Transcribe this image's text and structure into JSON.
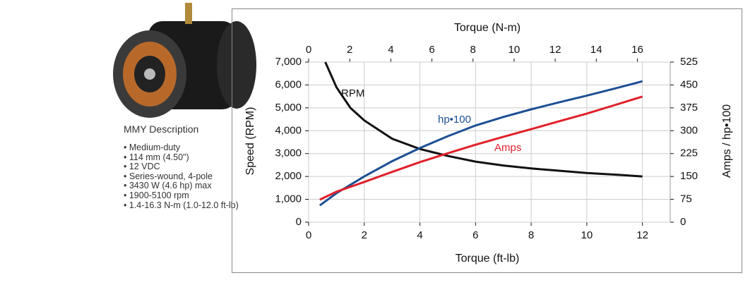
{
  "description": {
    "title": "MMY Description",
    "items": [
      "Medium-duty",
      "114 mm (4.50\")",
      "12 VDC",
      "Series-wound, 4-pole",
      "3430 W (4.6 hp) max",
      "1900-5100 rpm",
      "1.4-16.3 N-m (1.0-12.0 ft-lb)"
    ]
  },
  "chart_data": {
    "type": "line",
    "x_label": "Torque (ft-lb)",
    "x2_label": "Torque (N-m)",
    "y_label": "Speed (RPM)",
    "y2_label": "Amps / hp•100",
    "xlim": [
      0,
      13
    ],
    "xticks": [
      0,
      2,
      4,
      6,
      8,
      10,
      12
    ],
    "x2lim": [
      0,
      17.6
    ],
    "x2ticks": [
      0,
      2,
      4,
      6,
      8,
      10,
      12,
      14,
      16
    ],
    "ylim": [
      0,
      7000
    ],
    "yticks": [
      0,
      {
        "value": 1000,
        "label": "1,000"
      },
      {
        "value": 2000,
        "label": "2,000"
      },
      {
        "value": 3000,
        "label": "3,000"
      },
      {
        "value": 4000,
        "label": "4,000"
      },
      {
        "value": 5000,
        "label": "5,000"
      },
      {
        "value": 6000,
        "label": "6,000"
      },
      {
        "value": 7000,
        "label": "7,000"
      }
    ],
    "y2lim": [
      0,
      525
    ],
    "y2ticks": [
      0,
      75,
      150,
      225,
      300,
      375,
      450,
      525
    ],
    "grid": true,
    "series": [
      {
        "name": "RPM",
        "color": "#111111",
        "x": [
          0.6,
          1,
          1.5,
          2,
          3,
          4,
          5,
          6,
          7,
          8,
          9,
          10,
          11,
          12
        ],
        "values": [
          7000,
          5900,
          5000,
          4450,
          3650,
          3200,
          2900,
          2650,
          2480,
          2350,
          2250,
          2150,
          2080,
          2000
        ]
      },
      {
        "name": "hp•100",
        "color": "#1d4f94",
        "axis": "y2",
        "x": [
          0.4,
          1,
          2,
          3,
          4,
          5,
          6,
          7,
          8,
          9,
          10,
          11,
          12
        ],
        "values": [
          55,
          95,
          150,
          200,
          243,
          282,
          317,
          345,
          370,
          393,
          415,
          438,
          462
        ]
      },
      {
        "name": "Amps",
        "color": "#e0202a",
        "axis": "y2",
        "x": [
          0.4,
          1,
          2,
          3,
          4,
          5,
          6,
          7,
          8,
          9,
          10,
          11,
          12
        ],
        "values": [
          74,
          100,
          132,
          165,
          197,
          226,
          254,
          280,
          305,
          331,
          356,
          384,
          412
        ]
      }
    ]
  }
}
